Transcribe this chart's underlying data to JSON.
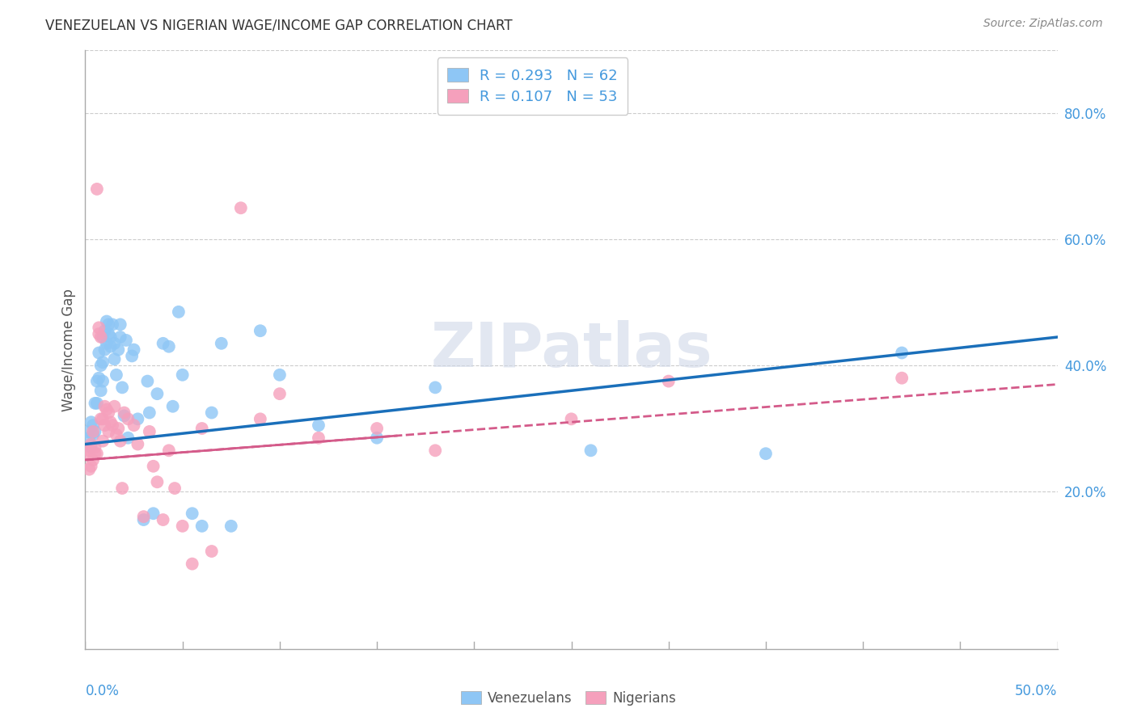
{
  "title": "VENEZUELAN VS NIGERIAN WAGE/INCOME GAP CORRELATION CHART",
  "source": "Source: ZipAtlas.com",
  "ylabel": "Wage/Income Gap",
  "watermark": "ZIPatlas",
  "venezuelan_color": "#8ec6f5",
  "nigerian_color": "#f5a0bc",
  "venezuelan_line_color": "#1a6fba",
  "nigerian_line_color": "#d45b8a",
  "venezuelan_R": 0.293,
  "venezuelan_N": 62,
  "nigerian_R": 0.107,
  "nigerian_N": 53,
  "venezuelan_x": [
    0.001,
    0.002,
    0.003,
    0.003,
    0.004,
    0.004,
    0.005,
    0.005,
    0.006,
    0.006,
    0.007,
    0.007,
    0.008,
    0.008,
    0.009,
    0.009,
    0.009,
    0.01,
    0.01,
    0.011,
    0.011,
    0.012,
    0.012,
    0.013,
    0.013,
    0.014,
    0.015,
    0.015,
    0.016,
    0.017,
    0.018,
    0.018,
    0.019,
    0.02,
    0.021,
    0.022,
    0.024,
    0.025,
    0.027,
    0.03,
    0.032,
    0.033,
    0.035,
    0.037,
    0.04,
    0.043,
    0.045,
    0.048,
    0.05,
    0.055,
    0.06,
    0.065,
    0.07,
    0.075,
    0.09,
    0.1,
    0.12,
    0.15,
    0.18,
    0.26,
    0.35,
    0.42
  ],
  "venezuelan_y": [
    0.295,
    0.285,
    0.31,
    0.27,
    0.305,
    0.29,
    0.34,
    0.295,
    0.375,
    0.34,
    0.42,
    0.38,
    0.4,
    0.36,
    0.445,
    0.405,
    0.375,
    0.455,
    0.425,
    0.47,
    0.435,
    0.45,
    0.465,
    0.43,
    0.445,
    0.465,
    0.41,
    0.435,
    0.385,
    0.425,
    0.445,
    0.465,
    0.365,
    0.32,
    0.44,
    0.285,
    0.415,
    0.425,
    0.315,
    0.155,
    0.375,
    0.325,
    0.165,
    0.355,
    0.435,
    0.43,
    0.335,
    0.485,
    0.385,
    0.165,
    0.145,
    0.325,
    0.435,
    0.145,
    0.455,
    0.385,
    0.305,
    0.285,
    0.365,
    0.265,
    0.26,
    0.42
  ],
  "nigerian_x": [
    0.001,
    0.002,
    0.002,
    0.003,
    0.003,
    0.004,
    0.004,
    0.005,
    0.005,
    0.006,
    0.006,
    0.007,
    0.007,
    0.008,
    0.008,
    0.009,
    0.009,
    0.01,
    0.01,
    0.011,
    0.012,
    0.012,
    0.013,
    0.014,
    0.015,
    0.016,
    0.017,
    0.018,
    0.019,
    0.02,
    0.022,
    0.025,
    0.027,
    0.03,
    0.033,
    0.035,
    0.037,
    0.04,
    0.043,
    0.046,
    0.05,
    0.055,
    0.06,
    0.065,
    0.08,
    0.09,
    0.1,
    0.12,
    0.15,
    0.18,
    0.25,
    0.3,
    0.42
  ],
  "nigerian_y": [
    0.26,
    0.265,
    0.235,
    0.275,
    0.24,
    0.295,
    0.25,
    0.26,
    0.27,
    0.68,
    0.26,
    0.45,
    0.46,
    0.445,
    0.315,
    0.315,
    0.28,
    0.335,
    0.305,
    0.33,
    0.295,
    0.325,
    0.31,
    0.305,
    0.335,
    0.29,
    0.3,
    0.28,
    0.205,
    0.325,
    0.315,
    0.305,
    0.275,
    0.16,
    0.295,
    0.24,
    0.215,
    0.155,
    0.265,
    0.205,
    0.145,
    0.085,
    0.3,
    0.105,
    0.65,
    0.315,
    0.355,
    0.285,
    0.3,
    0.265,
    0.315,
    0.375,
    0.38
  ],
  "background_color": "#ffffff",
  "grid_color": "#cccccc",
  "title_color": "#333333",
  "right_axis_color": "#4499dd",
  "bottom_axis_color": "#4499dd",
  "xlim": [
    0.0,
    0.5
  ],
  "ylim": [
    -0.05,
    0.9
  ],
  "ytick_vals": [
    0.2,
    0.4,
    0.6,
    0.8
  ]
}
